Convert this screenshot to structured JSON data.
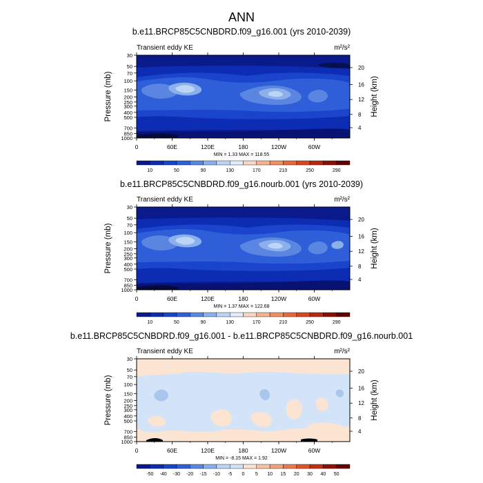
{
  "page_title": "ANN",
  "colors": {
    "c1": "#0a1a8c",
    "c2": "#0c2cb4",
    "c3": "#1a44cc",
    "c4": "#2e5ed8",
    "c5": "#5a86e2",
    "c6": "#8cb0ec",
    "c7": "#bcd4f6",
    "c8": "#e2ecfa",
    "d_neg": "#d4e4f8",
    "d_pos": "#fbe4d2"
  },
  "chart_data": [
    {
      "type": "heatmap",
      "title": "b.e11.BRCP85C5CNBDRD.f09_g16.001 (yrs 2010-2039)",
      "variable": "Transient eddy KE",
      "units": "m²/s²",
      "ylabel_left": "Pressure (mb)",
      "ylabel_right": "Height (km)",
      "x_ticks": [
        "0",
        "60E",
        "120E",
        "180",
        "120W",
        "60W"
      ],
      "y_ticks": [
        "30",
        "50",
        "70",
        "100",
        "150",
        "200",
        "250",
        "300",
        "400",
        "500",
        "700",
        "850",
        "1000"
      ],
      "height_ticks": [
        "20",
        "16",
        "12",
        "8",
        "4"
      ],
      "stats": "MIN =   1.33  MAX = 118.55",
      "colorbar_labels": [
        "10",
        "50",
        "90",
        "130",
        "170",
        "210",
        "250",
        "290"
      ],
      "colorbar_colors": [
        "#0a1a8c",
        "#0c2cb4",
        "#1a44cc",
        "#2e5ed8",
        "#5a86e2",
        "#8cb0ec",
        "#bcd4f6",
        "#e2ecfa",
        "#f6d7c3",
        "#f2b392",
        "#ee8e63",
        "#e6693c",
        "#d84622",
        "#b72812",
        "#8a1006",
        "#5e0504"
      ]
    },
    {
      "type": "heatmap",
      "title": "b.e11.BRCP85C5CNBDRD.f09_g16.nourb.001 (yrs 2010-2039)",
      "variable": "Transient eddy KE",
      "units": "m²/s²",
      "ylabel_left": "Pressure (mb)",
      "ylabel_right": "Height (km)",
      "x_ticks": [
        "0",
        "60E",
        "120E",
        "180",
        "120W",
        "60W"
      ],
      "y_ticks": [
        "30",
        "50",
        "70",
        "100",
        "150",
        "200",
        "250",
        "300",
        "400",
        "500",
        "700",
        "850",
        "1000"
      ],
      "height_ticks": [
        "20",
        "16",
        "12",
        "8",
        "4"
      ],
      "stats": "MIN =   1.37  MAX = 122.68",
      "colorbar_labels": [
        "10",
        "50",
        "90",
        "130",
        "170",
        "210",
        "250",
        "290"
      ],
      "colorbar_colors": [
        "#0a1a8c",
        "#0c2cb4",
        "#1a44cc",
        "#2e5ed8",
        "#5a86e2",
        "#8cb0ec",
        "#bcd4f6",
        "#e2ecfa",
        "#f6d7c3",
        "#f2b392",
        "#ee8e63",
        "#e6693c",
        "#d84622",
        "#b72812",
        "#8a1006",
        "#5e0504"
      ]
    },
    {
      "type": "heatmap",
      "title": "b.e11.BRCP85C5CNBDRD.f09_g16.001 - b.e11.BRCP85C5CNBDRD.f09_g16.nourb.001",
      "variable": "Transient eddy KE",
      "units": "m²/s²",
      "ylabel_left": "Pressure (mb)",
      "ylabel_right": "Height (km)",
      "x_ticks": [
        "0",
        "60E",
        "120E",
        "180",
        "120W",
        "60W"
      ],
      "y_ticks": [
        "30",
        "50",
        "70",
        "100",
        "150",
        "200",
        "250",
        "300",
        "400",
        "500",
        "700",
        "850",
        "1000"
      ],
      "height_ticks": [
        "20",
        "16",
        "12",
        "8",
        "4"
      ],
      "stats": "MIN =  -8.15  MAX =   1.92",
      "colorbar_labels": [
        "-50",
        "-40",
        "-30",
        "-20",
        "-15",
        "-10",
        "-5",
        "0",
        "5",
        "10",
        "15",
        "20",
        "30",
        "40",
        "50"
      ],
      "colorbar_colors": [
        "#0a1a8c",
        "#0c2cb4",
        "#1a44cc",
        "#2e5ed8",
        "#5a86e2",
        "#8cb0ec",
        "#bcd4f6",
        "#d4e4f8",
        "#fbe4d2",
        "#f6c4a4",
        "#f0a07a",
        "#e87a52",
        "#dc542e",
        "#c03016",
        "#901206",
        "#600604"
      ]
    }
  ]
}
